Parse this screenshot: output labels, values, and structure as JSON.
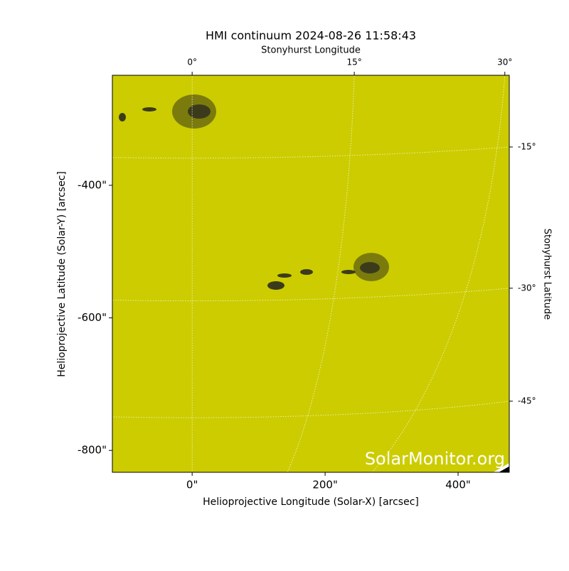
{
  "chart_data": {
    "type": "image",
    "title": "HMI continuum 2024-08-26 11:58:43",
    "xlabel": "Helioprojective Longitude (Solar-X) [arcsec]",
    "ylabel": "Helioprojective Latitude (Solar-Y) [arcsec]",
    "x2label": "Stonyhurst Longitude",
    "y2label": "Stonyhurst Latitude",
    "xlim": [
      -120,
      477
    ],
    "ylim": [
      -833,
      -234
    ],
    "xticks": [
      {
        "value": 0,
        "label": "0\""
      },
      {
        "value": 200,
        "label": "200\""
      },
      {
        "value": 400,
        "label": "400\""
      }
    ],
    "yticks": [
      {
        "value": -400,
        "label": "-400\""
      },
      {
        "value": -600,
        "label": "-600\""
      },
      {
        "value": -800,
        "label": "-800\""
      }
    ],
    "x2ticks": [
      {
        "value": 0,
        "label": "0°"
      },
      {
        "value": 15,
        "label": "15°"
      },
      {
        "value": 30,
        "label": "30°"
      }
    ],
    "y2ticks": [
      {
        "value": -15,
        "label": "-15°"
      },
      {
        "value": -30,
        "label": "-30°"
      },
      {
        "value": -45,
        "label": "-45°"
      }
    ],
    "color": "#cccc00",
    "watermark": "SolarMonitor.org"
  }
}
